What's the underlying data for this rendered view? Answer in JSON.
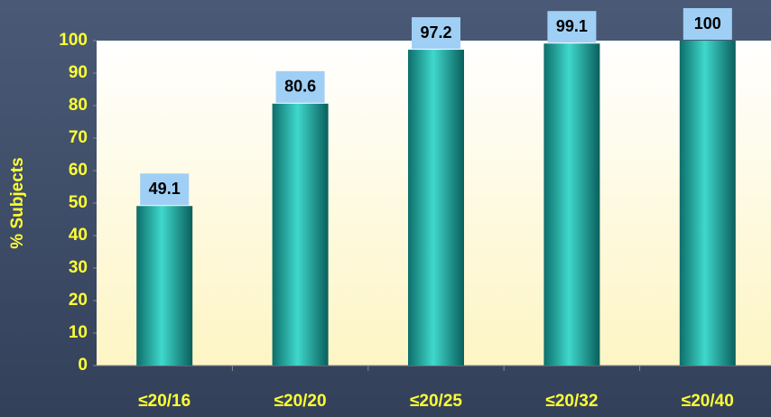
{
  "chart_data": {
    "type": "bar",
    "y_label": "% Subjects",
    "categories": [
      "≤20/16",
      "≤20/20",
      "≤20/25",
      "≤20/32",
      "≤20/40"
    ],
    "values": [
      49.1,
      80.6,
      97.2,
      99.1,
      100
    ],
    "color": "#1fb5ad",
    "ylim": [
      0,
      100
    ],
    "yticks": [
      0,
      10,
      20,
      30,
      40,
      50,
      60,
      70,
      80,
      90,
      100
    ],
    "grid": false
  }
}
